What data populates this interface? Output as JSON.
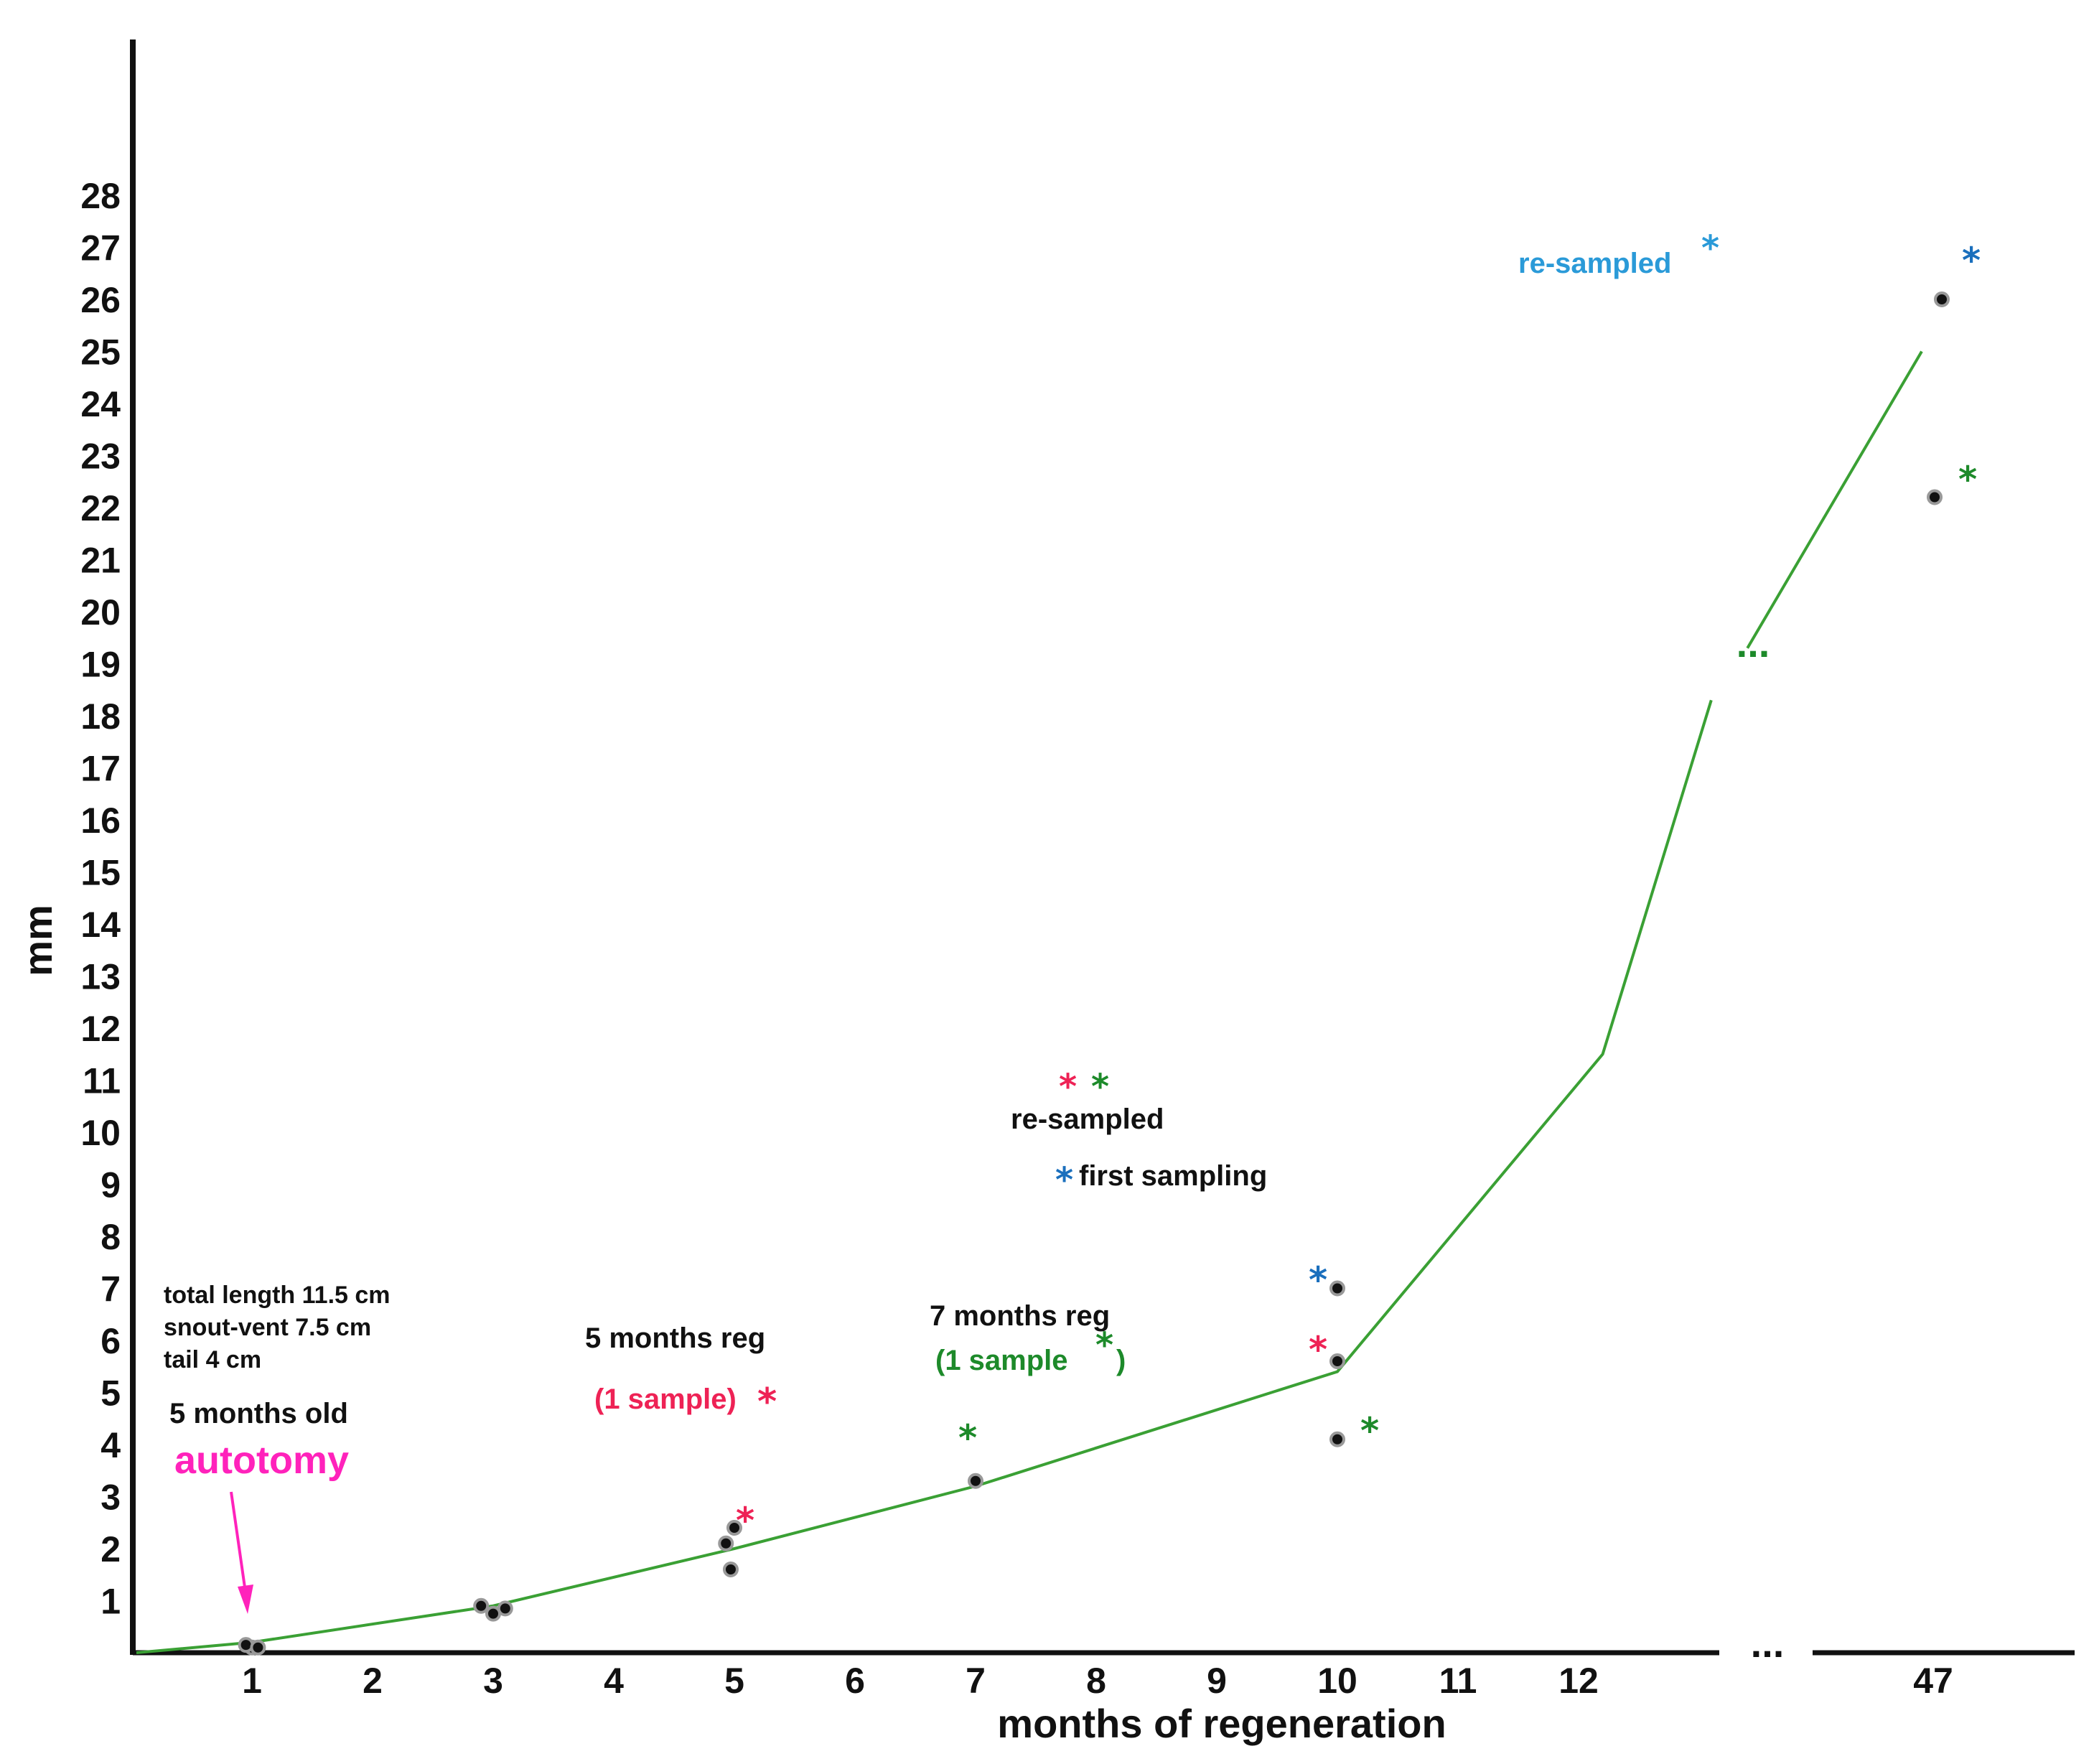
{
  "chart_data": {
    "type": "scatter",
    "xlabel": "months of regeneration",
    "ylabel": "mm",
    "y_ticks": [
      "1",
      "2",
      "3",
      "4",
      "5",
      "6",
      "7",
      "8",
      "9",
      "10",
      "11",
      "12",
      "13",
      "14",
      "15",
      "16",
      "17",
      "18",
      "19",
      "20",
      "21",
      "22",
      "23",
      "24",
      "25",
      "26",
      "27",
      "28"
    ],
    "x_ticks": [
      "1",
      "2",
      "3",
      "4",
      "5",
      "6",
      "7",
      "8",
      "9",
      "10",
      "11",
      "12",
      "47"
    ],
    "axis_break_label": "...",
    "trend_break_label": "...",
    "ylim": [
      0,
      28
    ],
    "points": [
      {
        "x": 1,
        "y": 0.1
      },
      {
        "x": 0.95,
        "y": 0.15
      },
      {
        "x": 1.05,
        "y": 0.1
      },
      {
        "x": 2.9,
        "y": 0.9
      },
      {
        "x": 3.0,
        "y": 0.75
      },
      {
        "x": 3.1,
        "y": 0.85
      },
      {
        "x": 4.93,
        "y": 2.1
      },
      {
        "x": 5.0,
        "y": 2.4
      },
      {
        "x": 4.97,
        "y": 1.6
      },
      {
        "x": 7.0,
        "y": 3.3
      },
      {
        "x": 10.0,
        "y": 7.0
      },
      {
        "x": 10.0,
        "y": 5.6
      },
      {
        "x": 10.0,
        "y": 4.1
      },
      {
        "x": 47,
        "y": 26.0
      },
      {
        "x": 47,
        "y": 22.2
      }
    ],
    "trend_line": [
      {
        "x": 0.0,
        "y": 0.0
      },
      {
        "x": 1,
        "y": 0.2
      },
      {
        "x": 3,
        "y": 0.9
      },
      {
        "x": 5,
        "y": 2.0
      },
      {
        "x": 7,
        "y": 3.2
      },
      {
        "x": 10,
        "y": 5.4
      },
      {
        "x": 12.2,
        "y": 11.5
      },
      {
        "x": 13.1,
        "y": 18.3
      }
    ],
    "trend_line_upper": [
      {
        "x": 13.4,
        "y": 19.3
      },
      {
        "x": 47,
        "y": 25.0
      }
    ],
    "colors": {
      "axis": "#111111",
      "line": "#3aa034",
      "point": "#111111",
      "red": "#ee2255",
      "green": "#1d8a2a",
      "blue": "#1a6fbd",
      "light_blue": "#2a9ad8",
      "magenta": "#ff22bb"
    }
  },
  "annotations": {
    "age_info": [
      "total length 11.5 cm",
      "snout-vent 7.5 cm",
      "tail 4 cm"
    ],
    "age_label": "5 months old",
    "autotomy_label": "autotomy",
    "reg5_label": "5 months reg",
    "reg5_sample": "(1 sample)",
    "reg7_label": "7 months reg",
    "reg7_sample_open": "(1 sample",
    "reg7_sample_close": ")",
    "legend_resampled": "re-sampled",
    "legend_first": "first sampling",
    "top_resampled": "re-sampled",
    "star": "*"
  }
}
